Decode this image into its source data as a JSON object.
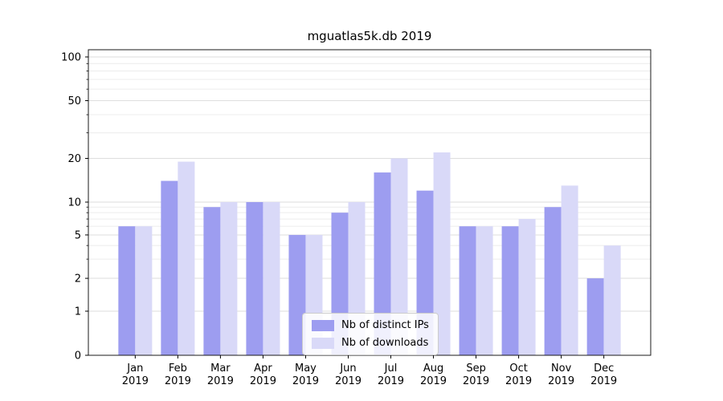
{
  "chart_data": {
    "type": "bar",
    "title": "mguatlas5k.db 2019",
    "categories": [
      "Jan",
      "Feb",
      "Mar",
      "Apr",
      "May",
      "Jun",
      "Jul",
      "Aug",
      "Sep",
      "Oct",
      "Nov",
      "Dec"
    ],
    "category_year": "2019",
    "series": [
      {
        "name": "Nb of distinct IPs",
        "color": "#9d9df0",
        "values": [
          6,
          14,
          9,
          10,
          5,
          8,
          16,
          12,
          6,
          6,
          9,
          2
        ]
      },
      {
        "name": "Nb of downloads",
        "color": "#d9d9f8",
        "values": [
          6,
          19,
          10,
          10,
          5,
          10,
          20,
          22,
          6,
          7,
          13,
          4
        ]
      }
    ],
    "yscale": "symlog",
    "ylim": [
      0,
      100
    ],
    "yticks": [
      0,
      1,
      2,
      5,
      10,
      20,
      50,
      100
    ],
    "minor_gridlines": [
      3,
      4,
      6,
      7,
      8,
      9,
      30,
      40,
      60,
      70,
      80,
      90
    ],
    "grid": "horizontal",
    "legend_position": "lower center"
  }
}
